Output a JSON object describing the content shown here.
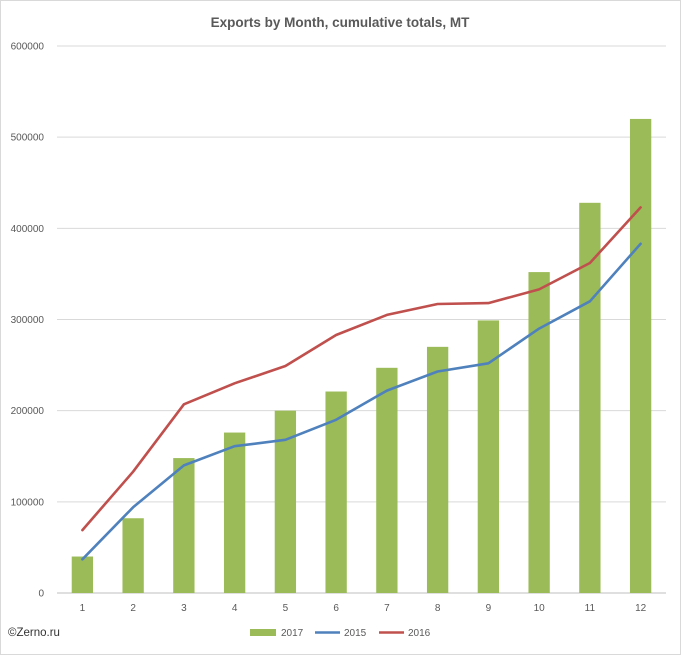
{
  "credit": "©Zerno.ru",
  "chart_data": {
    "type": "bar",
    "title": "Exports by Month, cumulative totals, MT",
    "xlabel": "",
    "ylabel": "",
    "categories": [
      "1",
      "2",
      "3",
      "4",
      "5",
      "6",
      "7",
      "8",
      "9",
      "10",
      "11",
      "12"
    ],
    "ylim": [
      0,
      600000
    ],
    "yticks": [
      0,
      100000,
      200000,
      300000,
      400000,
      500000,
      600000
    ],
    "ytick_labels": [
      "0",
      "100000",
      "200000",
      "300000",
      "400000",
      "500000",
      "600000"
    ],
    "grid": true,
    "legend_position": "bottom",
    "series": [
      {
        "name": "2017",
        "type": "bar",
        "color": "#9BBB59",
        "values": [
          40000,
          82000,
          148000,
          176000,
          200000,
          221000,
          247000,
          270000,
          299000,
          352000,
          428000,
          520000
        ]
      },
      {
        "name": "2015",
        "type": "line",
        "color": "#4F81BD",
        "values": [
          37000,
          94000,
          140000,
          161000,
          168000,
          190000,
          222000,
          243000,
          252000,
          290000,
          320000,
          383000
        ]
      },
      {
        "name": "2016",
        "type": "line",
        "color": "#C0504D",
        "values": [
          69000,
          133000,
          207000,
          230000,
          249000,
          283000,
          305000,
          317000,
          318000,
          333000,
          362000,
          423000
        ]
      }
    ]
  }
}
